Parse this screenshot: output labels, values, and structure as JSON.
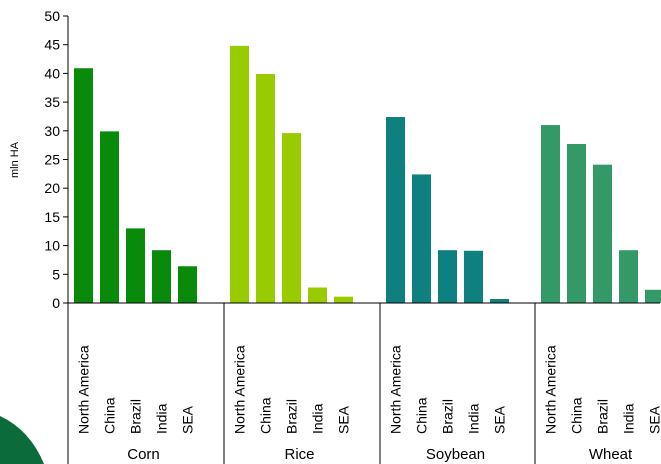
{
  "chart_data": {
    "type": "bar",
    "ylabel": "mln HA",
    "ylim": [
      0,
      50
    ],
    "yticks": [
      0,
      5,
      10,
      15,
      20,
      25,
      30,
      35,
      40,
      45,
      50
    ],
    "grid": false,
    "groups": [
      {
        "name": "Corn",
        "color": "#0a8a0a",
        "categories": [
          "North America",
          "China",
          "Brazil",
          "India",
          "SEA"
        ],
        "values": [
          40.9,
          29.9,
          13.0,
          9.2,
          6.4
        ]
      },
      {
        "name": "Rice",
        "color": "#99cc00",
        "categories": [
          "North America",
          "China",
          "Brazil",
          "India",
          "SEA"
        ],
        "values": [
          44.8,
          39.9,
          29.6,
          2.7,
          1.1
        ]
      },
      {
        "name": "Soybean",
        "color": "#0e8080",
        "categories": [
          "North America",
          "China",
          "Brazil",
          "India",
          "SEA"
        ],
        "values": [
          32.4,
          22.4,
          9.2,
          9.1,
          0.7
        ]
      },
      {
        "name": "Wheat",
        "color": "#339966",
        "categories": [
          "North America",
          "China",
          "Brazil",
          "India",
          "SEA"
        ],
        "values": [
          31.0,
          27.7,
          24.1,
          9.2,
          2.3
        ]
      }
    ]
  },
  "decoration": {
    "corner_shape_color": "#0b6b3a"
  }
}
